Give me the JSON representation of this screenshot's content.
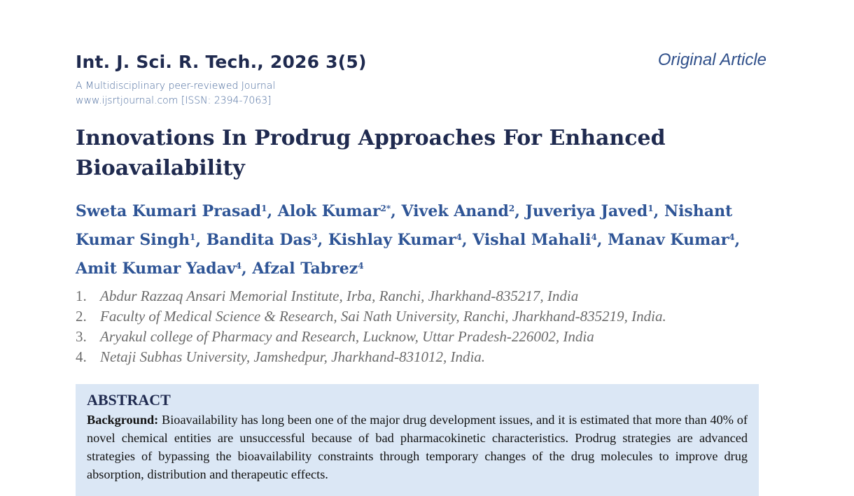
{
  "header": {
    "journal_citation": "Int. J. Sci. R. Tech., 2026 3(5)",
    "article_type": "Original Article",
    "tagline": "A Multidisciplinary peer-reviewed Journal",
    "website_issn": "www.ijsrtjournal.com [ISSN: 2394-7063]"
  },
  "title": "Innovations In Prodrug Approaches For Enhanced Bioavailability",
  "authors": [
    {
      "name": "Sweta Kumari Prasad",
      "sup": "1",
      "sep": ", "
    },
    {
      "name": "Alok Kumar",
      "sup": "2*",
      "sep": ", "
    },
    {
      "name": "Vivek Anand",
      "sup": "2",
      "sep": ", "
    },
    {
      "name": "Juveriya Javed",
      "sup": "1",
      "sep": ", "
    },
    {
      "name": "Nishant Kumar Singh",
      "sup": "1",
      "sep": ", "
    },
    {
      "name": "Bandita Das",
      "sup": "3",
      "sep": ", "
    },
    {
      "name": "Kishlay Kumar",
      "sup": "4",
      "sep": ", "
    },
    {
      "name": "Vishal Mahali",
      "sup": "4",
      "sep": ", "
    },
    {
      "name": "Manav Kumar",
      "sup": "4",
      "sep": ", "
    },
    {
      "name": "Amit Kumar Yadav",
      "sup": "4",
      "sep": ", "
    },
    {
      "name": "Afzal Tabrez",
      "sup": "4",
      "sep": ""
    }
  ],
  "affiliations": [
    {
      "num": "1.",
      "text": "Abdur Razzaq Ansari Memorial Institute, Irba, Ranchi, Jharkhand-835217, India"
    },
    {
      "num": "2.",
      "text": "Faculty of Medical Science & Research, Sai Nath University, Ranchi, Jharkhand-835219, India."
    },
    {
      "num": "3.",
      "text": "Aryakul college of Pharmacy and Research, Lucknow, Uttar Pradesh-226002, India"
    },
    {
      "num": "4.",
      "text": "Netaji Subhas University, Jamshedpur, Jharkhand-831012, India."
    }
  ],
  "abstract": {
    "heading": "ABSTRACT",
    "background_label": "Background:",
    "background_text": " Bioavailability has long been one of the major drug development issues, and it is estimated that more than 40% of novel chemical entities are unsuccessful because of bad pharmacokinetic characteristics. Prodrug strategies are advanced strategies of bypassing the bioavailability constraints through temporary changes of the drug molecules to improve drug absorption, distribution and therapeutic effects."
  }
}
